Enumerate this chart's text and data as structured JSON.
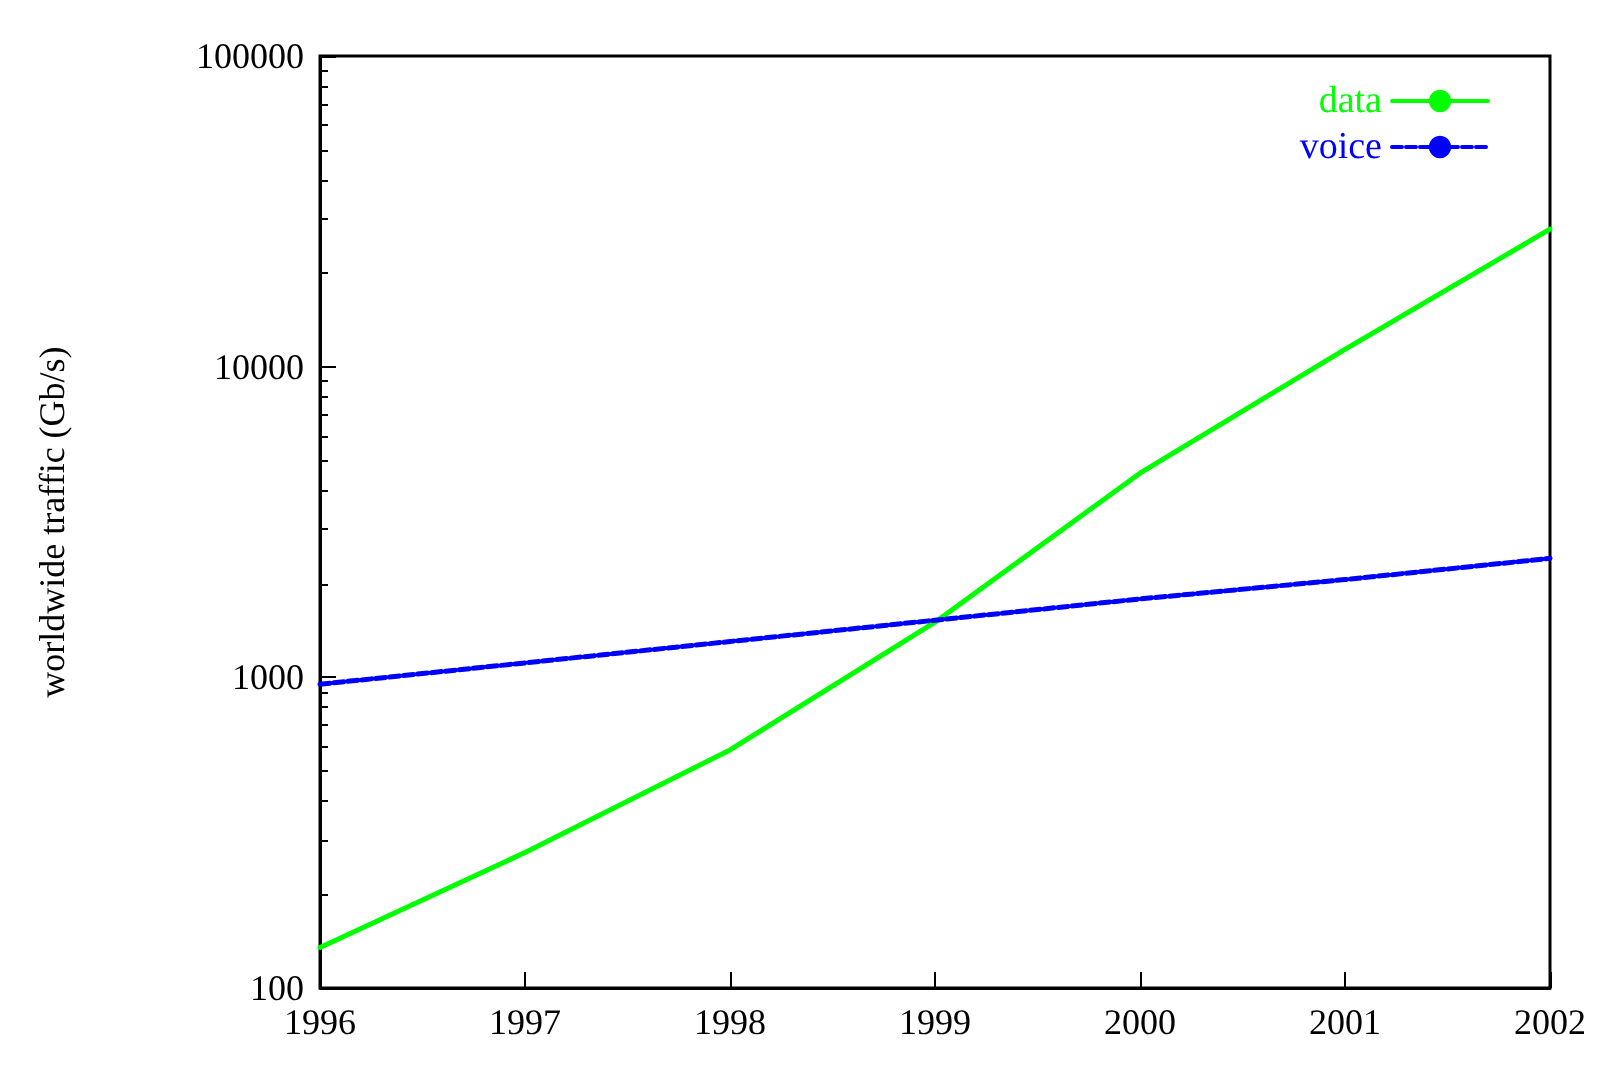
{
  "chart_data": {
    "type": "line",
    "ylabel": "worldwide traffic (Gb/s)",
    "x": [
      1996,
      1997,
      1998,
      1999,
      2000,
      2001,
      2002
    ],
    "series": [
      {
        "name": "data",
        "color": "#00ff00",
        "line_style": "solid",
        "values": [
          135,
          273,
          584,
          1505,
          4540,
          11370,
          27700
        ]
      },
      {
        "name": "voice",
        "color": "#0000ff",
        "line_style": "dashed",
        "values": [
          950,
          1113,
          1304,
          1527,
          1788,
          2064,
          2415
        ]
      }
    ],
    "xlim": [
      1996,
      2002
    ],
    "xticks": [
      1996,
      1997,
      1998,
      1999,
      2000,
      2001,
      2002
    ],
    "ylim": [
      100,
      100000
    ],
    "yticks": [
      100,
      1000,
      10000,
      100000
    ],
    "log": "y",
    "grid": false,
    "legend": "top right",
    "marker": "none"
  }
}
